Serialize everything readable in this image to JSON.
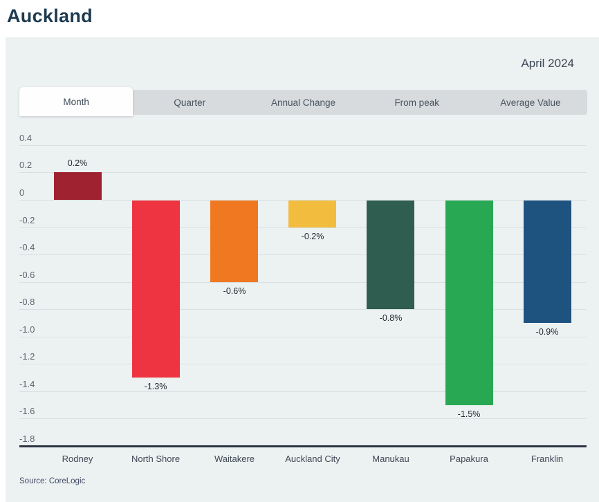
{
  "page": {
    "title": "Auckland",
    "date_label": "April 2024",
    "source": "Source: CoreLogic"
  },
  "tabs": [
    {
      "label": "Month",
      "active": true
    },
    {
      "label": "Quarter",
      "active": false
    },
    {
      "label": "Annual Change",
      "active": false
    },
    {
      "label": "From peak",
      "active": false
    },
    {
      "label": "Average Value",
      "active": false
    }
  ],
  "chart_data": {
    "type": "bar",
    "title": "Auckland",
    "subtitle": "April 2024",
    "categories": [
      "Rodney",
      "North Shore",
      "Waitakere",
      "Auckland City",
      "Manukau",
      "Papakura",
      "Franklin"
    ],
    "values": [
      0.2,
      -1.3,
      -0.6,
      -0.2,
      -0.8,
      -1.5,
      -0.9
    ],
    "value_labels": [
      "0.2%",
      "-1.3%",
      "-0.6%",
      "-0.2%",
      "-0.8%",
      "-1.5%",
      "-0.9%"
    ],
    "bar_colors": [
      "#9e2230",
      "#ee3440",
      "#f07820",
      "#f2bc3f",
      "#2f5d50",
      "#28a853",
      "#1e5380"
    ],
    "ytick_labels": [
      "0.4",
      "0.2",
      "0",
      "-0.2",
      "-0.4",
      "-0.6",
      "-0.8",
      "-1.0",
      "-1.2",
      "-1.4",
      "-1.6",
      "-1.8"
    ],
    "yticks": [
      0.4,
      0.2,
      0,
      -0.2,
      -0.4,
      -0.6,
      -0.8,
      -1.0,
      -1.2,
      -1.4,
      -1.6,
      -1.8
    ],
    "ylim": [
      -1.8,
      0.4
    ],
    "xlabel": "",
    "ylabel": "",
    "grid": true,
    "legend": false,
    "unit": "%"
  },
  "colors": {
    "panel_bg": "#ecf1f2",
    "tabbar_bg": "#d8dbde",
    "active_tab_bg": "#fefefe",
    "gridline": "#d9dfe2",
    "axis_line": "#2b3442",
    "title_text": "#1d3a50"
  }
}
